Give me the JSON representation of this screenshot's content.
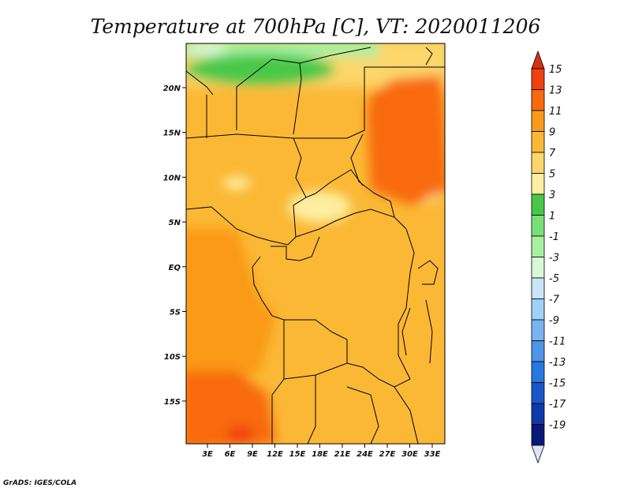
{
  "title": "Temperature at 700hPa [C], VT: 2020011206",
  "credit": "GrADS: IGES/COLA",
  "map": {
    "lon_ticks": [
      "3E",
      "6E",
      "9E",
      "12E",
      "15E",
      "18E",
      "21E",
      "24E",
      "27E",
      "30E",
      "33E"
    ],
    "lat_ticks": [
      "20N",
      "15N",
      "10N",
      "5N",
      "EQ",
      "5S",
      "10S",
      "15S"
    ]
  },
  "colorbar": {
    "labels": [
      "15",
      "13",
      "11",
      "9",
      "7",
      "5",
      "3",
      "1",
      "-1",
      "-3",
      "-5",
      "-7",
      "-9",
      "-11",
      "-13",
      "-15",
      "-17",
      "-19"
    ],
    "colors": [
      "#f04010",
      "#f86a10",
      "#fa9a18",
      "#fbb835",
      "#fcd66a",
      "#fdeea0",
      "#48c848",
      "#78e078",
      "#a8f0a0",
      "#d8f8d8",
      "#c8e6f8",
      "#a0d0f8",
      "#78b4f0",
      "#5094e8",
      "#2878e0",
      "#1858c8",
      "#1038a8",
      "#081878"
    ],
    "top_tip": "#d83010",
    "bottom_tip": "#e0e0f8"
  }
}
